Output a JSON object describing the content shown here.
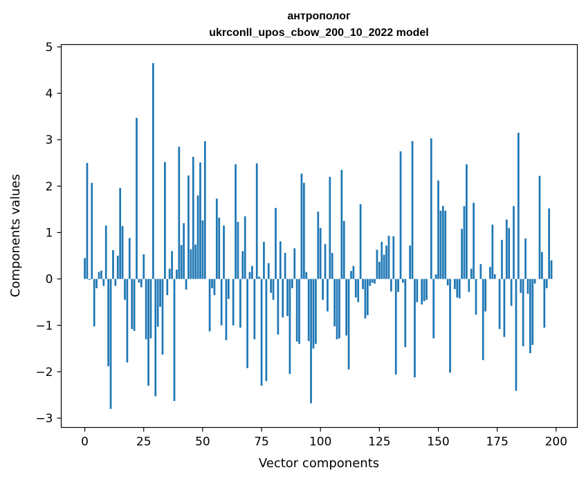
{
  "chart_data": {
    "type": "bar",
    "title_line1": "антрополог",
    "title_line2": "ukrconll_upos_cbow_200_10_2022 model",
    "xlabel": "Vector components",
    "ylabel": "Components values",
    "xlim": [
      -10,
      209
    ],
    "ylim": [
      -3.2,
      5.05
    ],
    "x_ticks": [
      0,
      25,
      50,
      75,
      100,
      125,
      150,
      175,
      200
    ],
    "y_ticks": [
      -3,
      -2,
      -1,
      0,
      1,
      2,
      3,
      4,
      5
    ],
    "y_tick_labels": [
      "−3",
      "−2",
      "−1",
      "0",
      "1",
      "2",
      "3",
      "4",
      "5"
    ],
    "bar_color": "#1f77b4",
    "values": [
      0.45,
      2.5,
      -0.02,
      2.07,
      -1.02,
      -0.2,
      0.15,
      0.18,
      -0.15,
      1.15,
      -1.88,
      -2.8,
      0.62,
      -0.15,
      0.5,
      1.96,
      1.14,
      -0.45,
      -1.8,
      0.88,
      -1.08,
      -1.12,
      3.47,
      -0.08,
      -0.18,
      0.53,
      -1.3,
      -2.3,
      -1.28,
      4.65,
      -2.53,
      -1.03,
      -0.6,
      -1.63,
      2.52,
      -0.35,
      0.22,
      0.6,
      -2.63,
      0.2,
      2.85,
      0.73,
      1.2,
      -0.23,
      2.23,
      0.64,
      2.63,
      0.74,
      1.8,
      2.51,
      1.26,
      2.97,
      0.0,
      -1.13,
      -0.2,
      -0.35,
      1.73,
      1.32,
      -1.0,
      1.15,
      -1.32,
      -0.43,
      0.0,
      -1.0,
      2.47,
      1.23,
      -1.05,
      0.6,
      1.35,
      -1.92,
      0.15,
      0.28,
      -1.3,
      2.49,
      0.05,
      -2.3,
      0.8,
      -2.2,
      0.34,
      -0.3,
      -0.45,
      1.53,
      -1.2,
      0.81,
      -0.83,
      0.56,
      -0.8,
      -2.05,
      -0.2,
      0.66,
      -1.35,
      -1.4,
      2.27,
      2.07,
      0.15,
      -1.34,
      -2.68,
      -1.5,
      -1.4,
      1.45,
      1.1,
      -0.45,
      0.75,
      -0.7,
      2.2,
      0.56,
      -1.02,
      -1.3,
      -1.28,
      2.35,
      1.25,
      -1.22,
      -1.95,
      0.17,
      0.28,
      -0.4,
      -0.5,
      1.61,
      -0.22,
      -0.85,
      -0.78,
      -0.15,
      -0.08,
      -0.1,
      0.63,
      0.37,
      0.8,
      0.52,
      0.72,
      0.93,
      -0.27,
      0.92,
      -2.06,
      -0.28,
      2.75,
      -0.08,
      -1.47,
      0.0,
      0.72,
      2.97,
      -2.12,
      -0.5,
      0.0,
      -0.55,
      -0.48,
      -0.45,
      0.0,
      3.03,
      -1.28,
      0.1,
      2.12,
      1.47,
      1.57,
      1.47,
      -0.14,
      -2.02,
      0.0,
      -0.22,
      -0.4,
      -0.42,
      1.08,
      1.57,
      2.47,
      -0.28,
      0.22,
      1.64,
      -0.77,
      0.0,
      0.32,
      -1.75,
      -0.7,
      0.0,
      0.26,
      1.17,
      0.1,
      0.0,
      -1.08,
      0.84,
      -1.25,
      1.28,
      1.1,
      -0.58,
      1.57,
      -2.41,
      3.15,
      -0.3,
      -1.45,
      0.87,
      -0.32,
      -1.6,
      -1.42,
      -0.1,
      0.0,
      2.22,
      0.58,
      -1.05,
      -0.2,
      1.52,
      0.4
    ]
  }
}
